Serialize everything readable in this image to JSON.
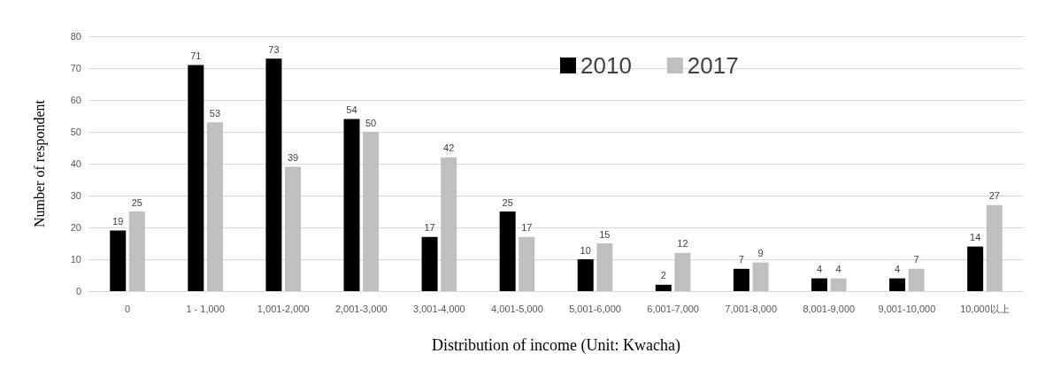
{
  "chart_data": {
    "type": "bar",
    "xlabel": "Distribution of income (Unit: Kwacha)",
    "ylabel": "Number of respondent",
    "categories": [
      "0",
      "1 - 1,000",
      "1,001-2,000",
      "2,001-3,000",
      "3,001-4,000",
      "4,001-5,000",
      "5,001-6,000",
      "6,001-7,000",
      "7,001-8,000",
      "8,001-9,000",
      "9,001-10,000",
      "10,000以上"
    ],
    "series": [
      {
        "name": "2010",
        "color": "#000000",
        "values": [
          19,
          71,
          73,
          54,
          17,
          25,
          10,
          2,
          7,
          4,
          4,
          14
        ]
      },
      {
        "name": "2017",
        "color": "#bfbfbf",
        "values": [
          25,
          53,
          39,
          50,
          42,
          17,
          15,
          12,
          9,
          4,
          7,
          27
        ]
      }
    ],
    "ylim": [
      0,
      80
    ],
    "yticks": [
      0,
      10,
      20,
      30,
      40,
      50,
      60,
      70,
      80
    ],
    "grid": "y",
    "legend": "top right",
    "data_labels": true
  }
}
